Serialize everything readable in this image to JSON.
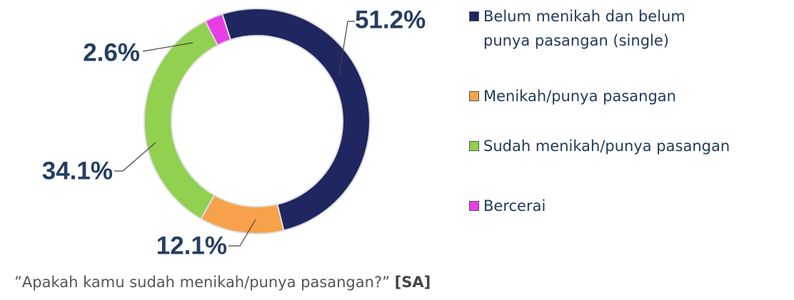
{
  "chart_data": {
    "type": "donut",
    "categories": [
      "Belum menikah dan belum punya pasangan (single)",
      "Menikah/punya pasangan",
      "Sudah menikah/punya pasangan",
      "Bercerai"
    ],
    "values": [
      51.2,
      12.1,
      34.1,
      2.6
    ],
    "value_labels": [
      "51.2%",
      "12.1%",
      "34.1%",
      "2.6%"
    ],
    "colors": [
      "#1f2660",
      "#f7a24a",
      "#92d050",
      "#e83ee6"
    ]
  },
  "footer": {
    "text": "”Apakah kamu sudah menikah/punya pasangan?”",
    "tag": "[SA]"
  }
}
